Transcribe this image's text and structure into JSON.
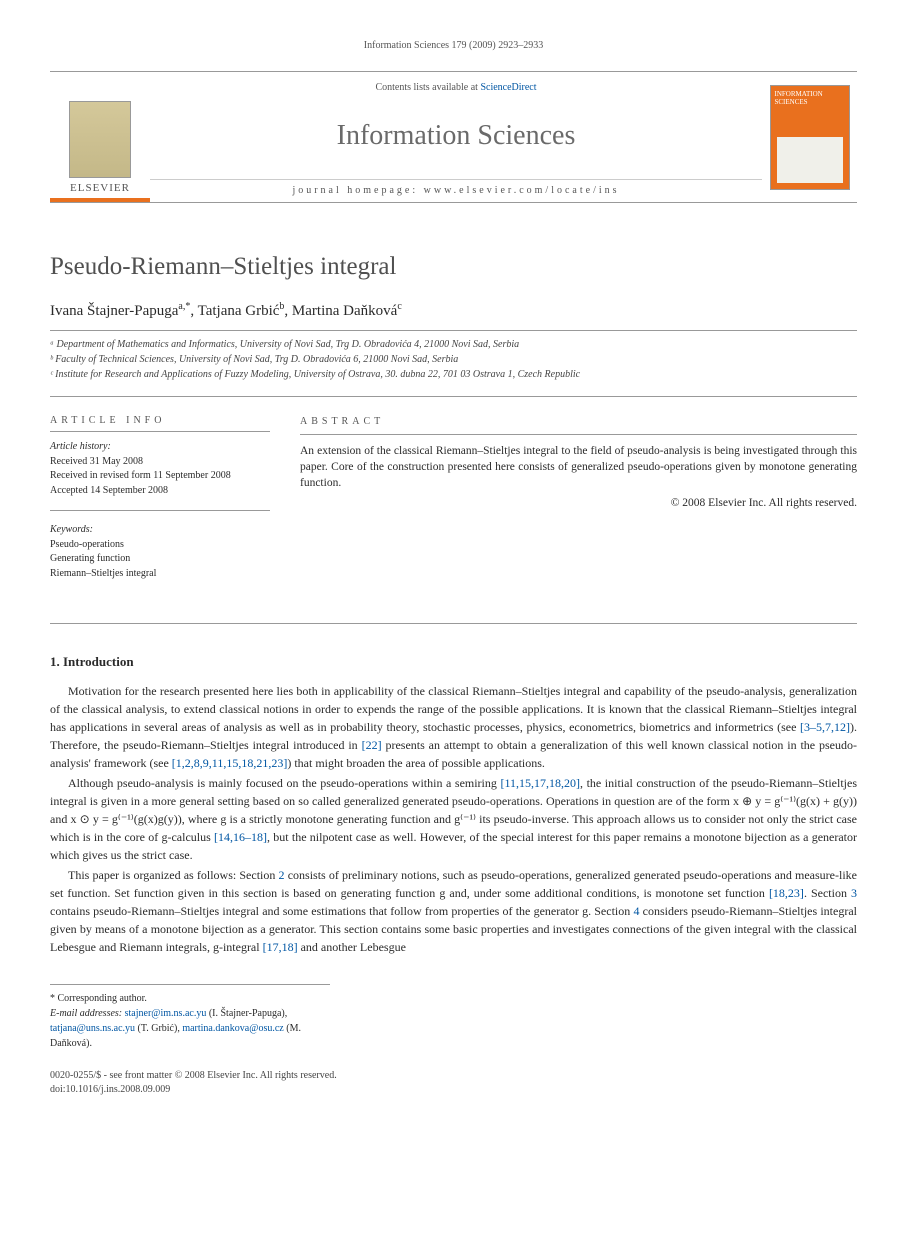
{
  "running_head": "Information Sciences 179 (2009) 2923–2933",
  "masthead": {
    "contents_prefix": "Contents lists available at ",
    "contents_link": "ScienceDirect",
    "journal": "Information Sciences",
    "homepage_label": "journal homepage: www.elsevier.com/locate/ins",
    "publisher": "ELSEVIER",
    "cover_title": "INFORMATION SCIENCES"
  },
  "title": "Pseudo-Riemann–Stieltjes integral",
  "authors_html": "Ivana Štajner-Papuga ᵃ٭, Tatjana Grbić ᵇ, Martina Daňková ᶜ",
  "authors": [
    {
      "name": "Ivana Štajner-Papuga",
      "marks": "a,*"
    },
    {
      "name": "Tatjana Grbić",
      "marks": "b"
    },
    {
      "name": "Martina Daňková",
      "marks": "c"
    }
  ],
  "affiliations": [
    "ᵃ Department of Mathematics and Informatics, University of Novi Sad, Trg D. Obradovića 4, 21000 Novi Sad, Serbia",
    "ᵇ Faculty of Technical Sciences, University of Novi Sad, Trg D. Obradovića 6, 21000 Novi Sad, Serbia",
    "ᶜ Institute for Research and Applications of Fuzzy Modeling, University of Ostrava, 30. dubna 22, 701 03 Ostrava 1, Czech Republic"
  ],
  "article_info": {
    "heading": "ARTICLE INFO",
    "history_label": "Article history:",
    "history": [
      "Received 31 May 2008",
      "Received in revised form 11 September 2008",
      "Accepted 14 September 2008"
    ],
    "keywords_label": "Keywords:",
    "keywords": [
      "Pseudo-operations",
      "Generating function",
      "Riemann–Stieltjes integral"
    ]
  },
  "abstract": {
    "heading": "ABSTRACT",
    "text": "An extension of the classical Riemann–Stieltjes integral to the field of pseudo-analysis is being investigated through this paper. Core of the construction presented here consists of generalized pseudo-operations given by monotone generating function.",
    "copyright": "© 2008 Elsevier Inc. All rights reserved."
  },
  "section1": {
    "heading": "1. Introduction",
    "p1_a": "Motivation for the research presented here lies both in applicability of the classical Riemann–Stieltjes integral and capability of the pseudo-analysis, generalization of the classical analysis, to extend classical notions in order to expends the range of the possible applications. It is known that the classical Riemann–Stieltjes integral has applications in several areas of analysis as well as in probability theory, stochastic processes, physics, econometrics, biometrics and informetrics (see ",
    "p1_ref1": "[3–5,7,12]",
    "p1_b": "). Therefore, the pseudo-Riemann–Stieltjes integral introduced in ",
    "p1_ref2": "[22]",
    "p1_c": " presents an attempt to obtain a generalization of this well known classical notion in the pseudo-analysis' framework (see ",
    "p1_ref3": "[1,2,8,9,11,15,18,21,23]",
    "p1_d": ") that might broaden the area of possible applications.",
    "p2_a": "Although pseudo-analysis is mainly focused on the pseudo-operations within a semiring ",
    "p2_ref1": "[11,15,17,18,20]",
    "p2_b": ", the initial construction of the pseudo-Riemann–Stieltjes integral is given in a more general setting based on so called generalized generated pseudo-operations. Operations in question are of the form x ⊕ y = g⁽⁻¹⁾(g(x) + g(y)) and x ⊙ y = g⁽⁻¹⁾(g(x)g(y)), where g is a strictly monotone generating function and g⁽⁻¹⁾ its pseudo-inverse. This approach allows us to consider not only the strict case which is in the core of g-calculus ",
    "p2_ref2": "[14,16–18]",
    "p2_c": ", but the nilpotent case as well. However, of the special interest for this paper remains a monotone bijection as a generator which gives us the strict case.",
    "p3_a": "This paper is organized as follows: Section ",
    "p3_ref1": "2",
    "p3_b": " consists of preliminary notions, such as pseudo-operations, generalized generated pseudo-operations and measure-like set function. Set function given in this section is based on generating function g and, under some additional conditions, is monotone set function ",
    "p3_ref2": "[18,23]",
    "p3_c": ". Section ",
    "p3_ref3": "3",
    "p3_d": " contains pseudo-Riemann–Stieltjes integral and some estimations that follow from properties of the generator g. Section ",
    "p3_ref4": "4",
    "p3_e": " considers pseudo-Riemann–Stieltjes integral given by means of a monotone bijection as a generator. This section contains some basic properties and investigates connections of the given integral with the classical Lebesgue and Riemann integrals, g-integral ",
    "p3_ref5": "[17,18]",
    "p3_f": " and another Lebesgue"
  },
  "footnotes": {
    "corresponding": "* Corresponding author.",
    "email_label": "E-mail addresses:",
    "emails": [
      {
        "addr": "stajner@im.ns.ac.yu",
        "who": "(I. Štajner-Papuga)"
      },
      {
        "addr": "tatjana@uns.ns.ac.yu",
        "who": "(T. Grbić)"
      },
      {
        "addr": "martina.dankova@osu.cz",
        "who": "(M. Daňková)"
      }
    ]
  },
  "footer": {
    "line1": "0020-0255/$ - see front matter © 2008 Elsevier Inc. All rights reserved.",
    "line2": "doi:10.1016/j.ins.2008.09.009"
  },
  "colors": {
    "accent_orange": "#e9701e",
    "link_blue": "#0056a3",
    "rule_gray": "#999999",
    "heading_gray": "#505050"
  }
}
